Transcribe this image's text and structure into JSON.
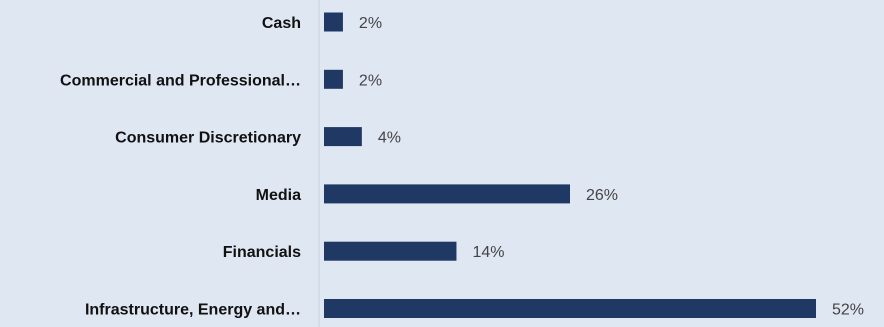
{
  "chart_data": {
    "type": "bar",
    "orientation": "horizontal",
    "categories": [
      "Cash",
      "Commercial and Professional…",
      "Consumer Discretionary",
      "Media",
      "Financials",
      "Infrastructure, Energy and…"
    ],
    "values": [
      2,
      2,
      4,
      26,
      14,
      52
    ],
    "value_labels": [
      "2%",
      "2%",
      "4%",
      "26%",
      "14%",
      "52%"
    ],
    "unit": "%",
    "xlim": [
      0,
      52
    ],
    "grid": false,
    "legend": "none",
    "bar_color": "#203864",
    "axis_color": "#c9d1dd",
    "background_color": "#dfe7f3"
  }
}
